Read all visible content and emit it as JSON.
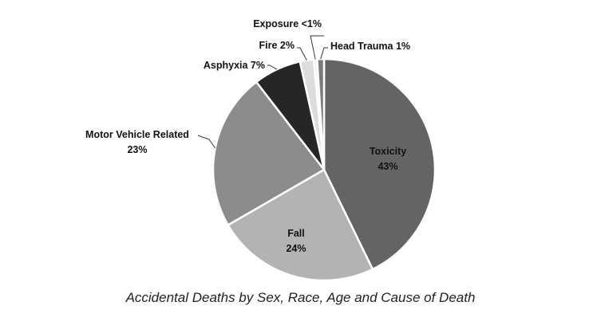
{
  "chart_data": {
    "type": "pie",
    "caption": "Accidental Deaths by Sex, Race, Age and Cause of Death",
    "start_angle_deg": 90,
    "direction": "clockwise",
    "slices": [
      {
        "name": "Toxicity",
        "value": 43,
        "label_line1": "Toxicity",
        "label_line2": "43%",
        "color": "#646464"
      },
      {
        "name": "Fall",
        "value": 24,
        "label_line1": "Fall",
        "label_line2": "24%",
        "color": "#b3b3b3"
      },
      {
        "name": "Motor Vehicle Related",
        "value": 23,
        "label_line1": "Motor Vehicle Related",
        "label_line2": "23%",
        "color": "#8c8c8c"
      },
      {
        "name": "Asphyxia",
        "value": 7,
        "label_line1": "Asphyxia 7%",
        "label_line2": "",
        "color": "#262626"
      },
      {
        "name": "Fire",
        "value": 2,
        "label_line1": "Fire 2%",
        "label_line2": "",
        "color": "#dcdcdc"
      },
      {
        "name": "Exposure",
        "value": 0.5,
        "label_line1": "Exposure <1%",
        "label_line2": "",
        "color": "#f2f2f2"
      },
      {
        "name": "Head Trauma",
        "value": 1,
        "label_line1": "Head Trauma 1%",
        "label_line2": "",
        "color": "#7a7a7a"
      }
    ]
  }
}
